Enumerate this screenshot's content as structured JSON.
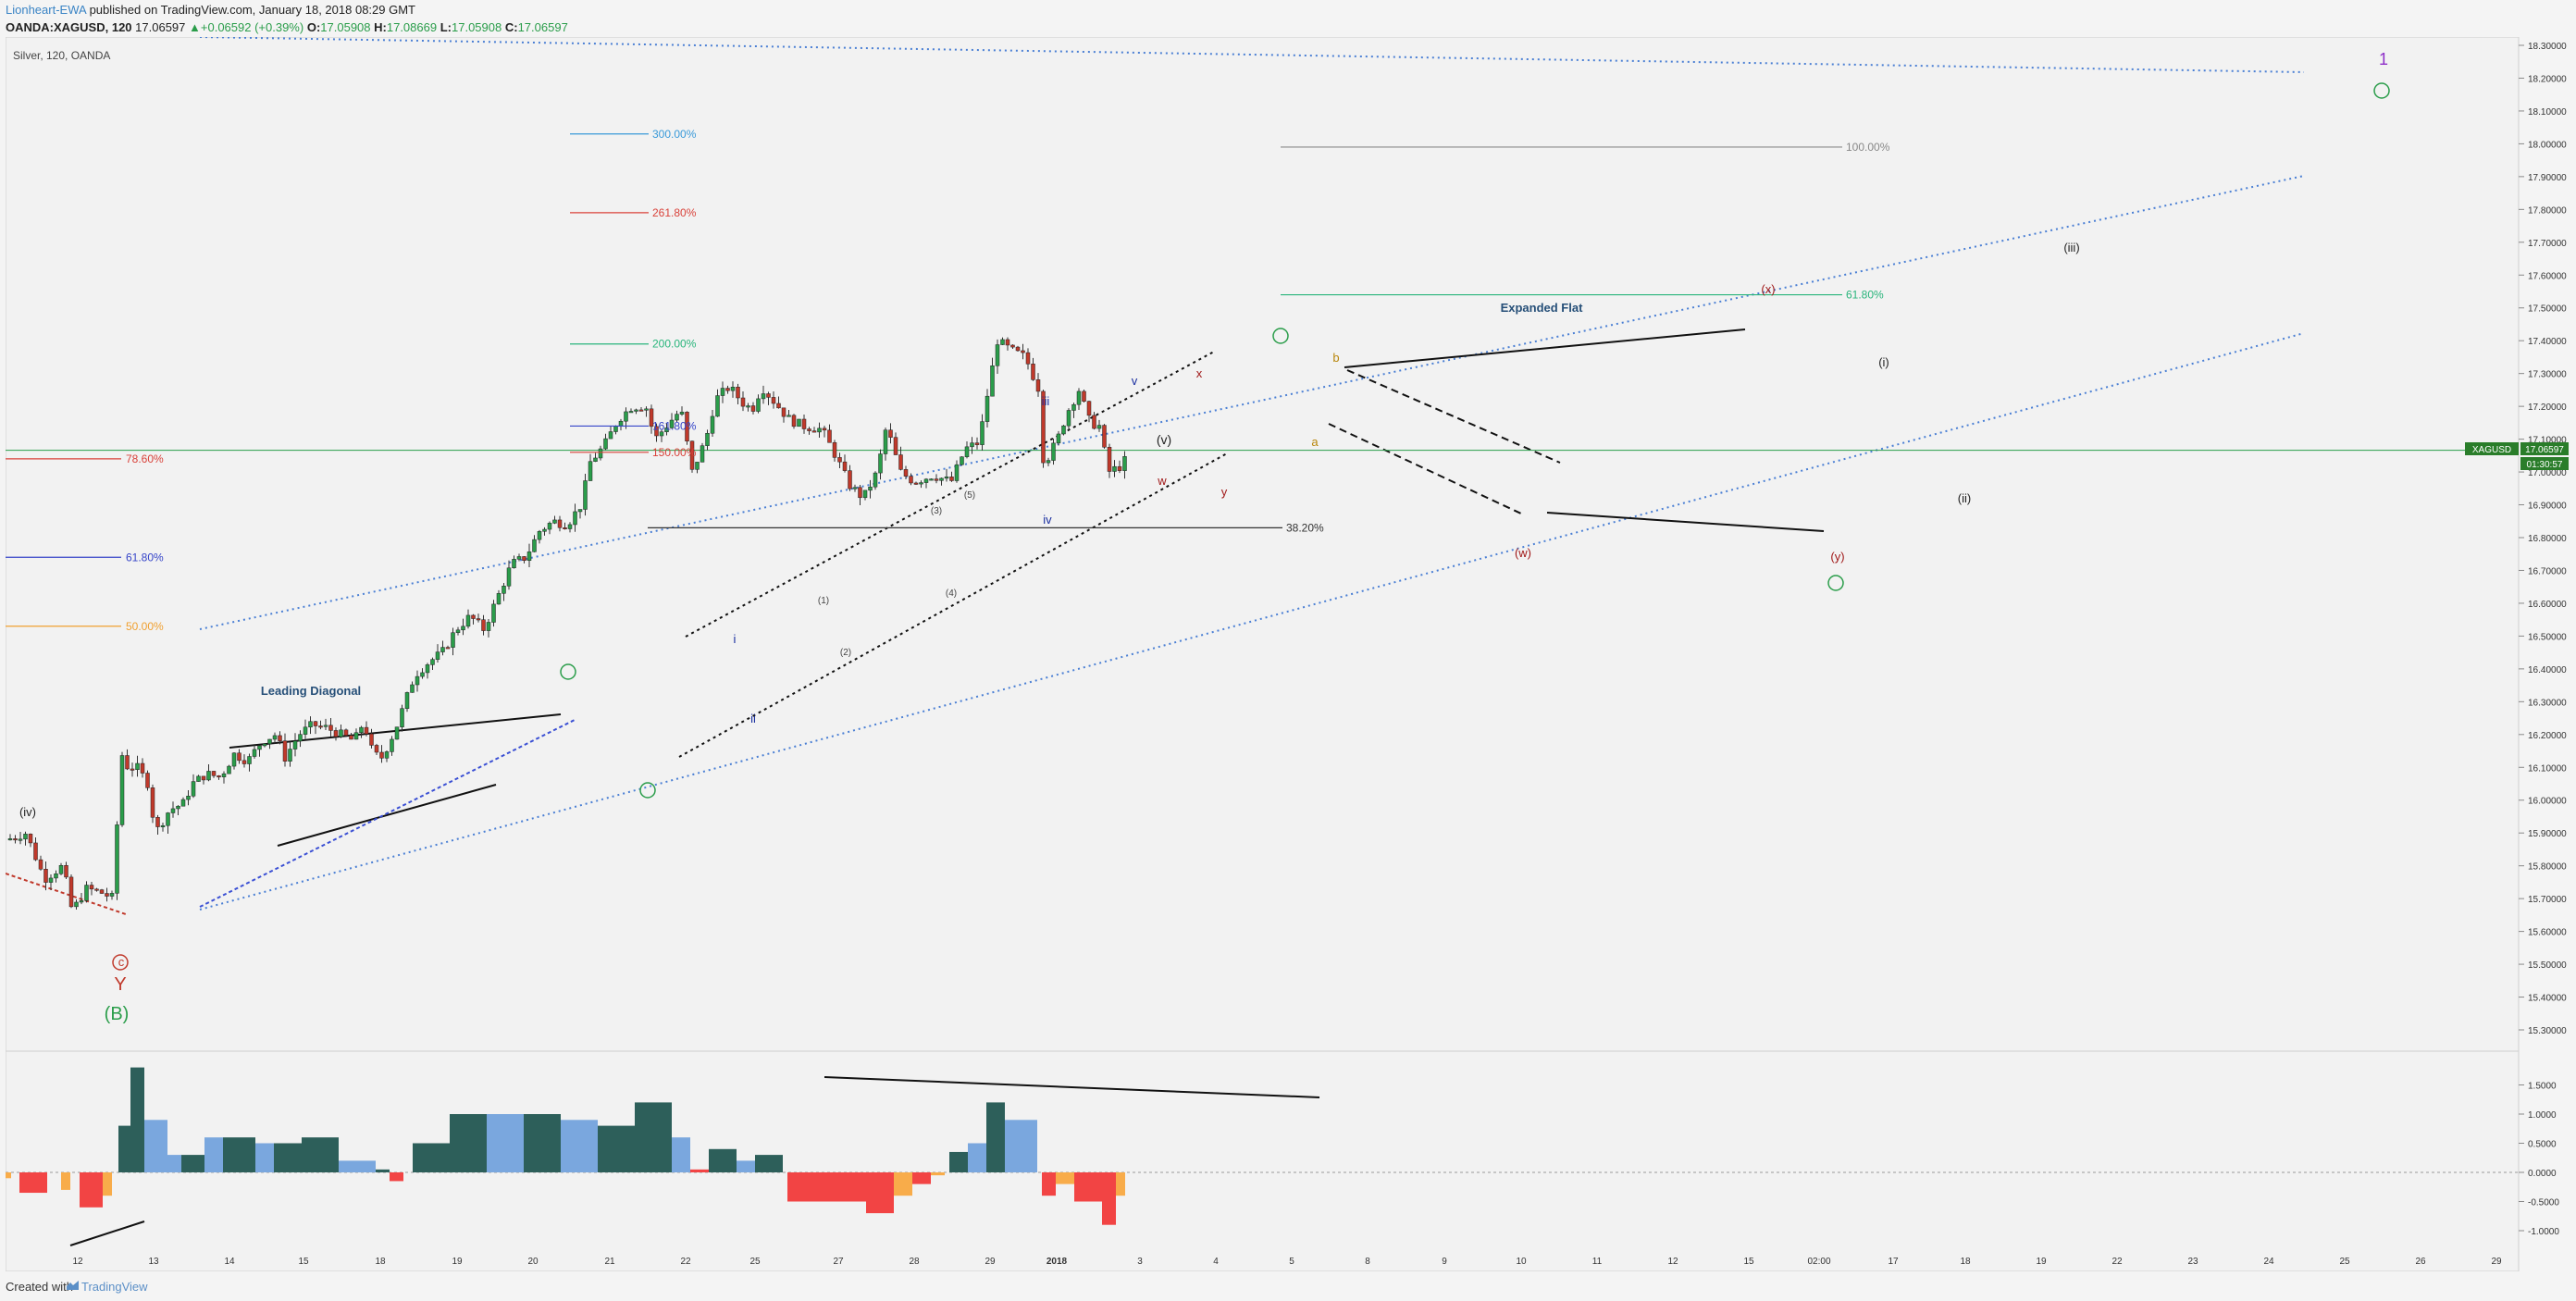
{
  "header": {
    "author": "Lionheart-EWA",
    "published": " published on TradingView.com, January 18, 2018 08:29 GMT",
    "symbol": "OANDA:XAGUSD, 120",
    "last": "17.06597",
    "change": "▲+0.06592 (+0.39%)",
    "o": "17.05908",
    "h": "17.08669",
    "l": "17.05908",
    "c": "17.06597"
  },
  "legend": "Silver, 120, OANDA",
  "footer": {
    "created": "Created with",
    "brand": "TradingView"
  },
  "price_tag": {
    "symbol": "XAGUSD",
    "price": "17.06597",
    "countdown": "01:30:57"
  },
  "colors": {
    "up": "#2a9d4a",
    "down": "#c0392b",
    "accent": "#3a84c5",
    "osc_dark": "#2d5f5a",
    "osc_blue": "#7aa7de",
    "osc_red": "#f24444",
    "osc_orange": "#f8ac4a"
  },
  "chart_data": {
    "type": "candlestick",
    "x_ticks": [
      "12",
      "13",
      "14",
      "15",
      "18",
      "19",
      "20",
      "21",
      "22",
      "25",
      "27",
      "28",
      "29",
      "2018",
      "3",
      "4",
      "5",
      "8",
      "9",
      "10",
      "11",
      "12",
      "15",
      "02:00",
      "17",
      "18",
      "19",
      "22",
      "23",
      "24",
      "25",
      "26",
      "29"
    ],
    "y_ticks": [
      "18.30000",
      "18.20000",
      "18.10000",
      "18.00000",
      "17.90000",
      "17.80000",
      "17.70000",
      "17.60000",
      "17.50000",
      "17.40000",
      "17.30000",
      "17.20000",
      "17.10000",
      "17.00000",
      "16.90000",
      "16.80000",
      "16.70000",
      "16.60000",
      "16.50000",
      "16.40000",
      "16.30000",
      "16.20000",
      "16.10000",
      "16.00000",
      "15.90000",
      "15.80000",
      "15.70000",
      "15.60000",
      "15.50000",
      "15.40000",
      "15.30000"
    ],
    "osc_ticks": [
      "1.5000",
      "1.0000",
      "0.5000",
      "0.0000",
      "-0.5000",
      "-1.0000"
    ],
    "price_path": [
      [
        0,
        15.88
      ],
      [
        20,
        15.9
      ],
      [
        40,
        15.76
      ],
      [
        60,
        15.8
      ],
      [
        70,
        15.66
      ],
      [
        85,
        15.73
      ],
      [
        100,
        15.72
      ],
      [
        115,
        15.7
      ],
      [
        122,
        16.15
      ],
      [
        130,
        16.1
      ],
      [
        140,
        16.1
      ],
      [
        152,
        16.05
      ],
      [
        160,
        15.9
      ],
      [
        175,
        15.97
      ],
      [
        190,
        15.99
      ],
      [
        200,
        16.05
      ],
      [
        215,
        16.08
      ],
      [
        230,
        16.07
      ],
      [
        245,
        16.14
      ],
      [
        260,
        16.12
      ],
      [
        275,
        16.18
      ],
      [
        290,
        16.2
      ],
      [
        300,
        16.13
      ],
      [
        315,
        16.2
      ],
      [
        330,
        16.23
      ],
      [
        345,
        16.22
      ],
      [
        360,
        16.2
      ],
      [
        375,
        16.18
      ],
      [
        385,
        16.24
      ],
      [
        395,
        16.14
      ],
      [
        405,
        16.13
      ],
      [
        420,
        16.22
      ],
      [
        440,
        16.38
      ],
      [
        455,
        16.42
      ],
      [
        470,
        16.45
      ],
      [
        485,
        16.52
      ],
      [
        500,
        16.56
      ],
      [
        515,
        16.52
      ],
      [
        530,
        16.62
      ],
      [
        545,
        16.72
      ],
      [
        560,
        16.74
      ],
      [
        575,
        16.82
      ],
      [
        590,
        16.85
      ],
      [
        605,
        16.84
      ],
      [
        620,
        16.9
      ],
      [
        630,
        17.03
      ],
      [
        645,
        17.08
      ],
      [
        660,
        17.16
      ],
      [
        675,
        17.2
      ],
      [
        690,
        17.2
      ],
      [
        700,
        17.1
      ],
      [
        715,
        17.15
      ],
      [
        728,
        17.19
      ],
      [
        740,
        17.0
      ],
      [
        755,
        17.1
      ],
      [
        765,
        17.22
      ],
      [
        780,
        17.26
      ],
      [
        795,
        17.21
      ],
      [
        805,
        17.19
      ],
      [
        815,
        17.26
      ],
      [
        830,
        17.21
      ],
      [
        845,
        17.16
      ],
      [
        860,
        17.14
      ],
      [
        880,
        17.13
      ],
      [
        895,
        17.05
      ],
      [
        910,
        16.96
      ],
      [
        925,
        16.92
      ],
      [
        940,
        17.0
      ],
      [
        950,
        17.14
      ],
      [
        965,
        17.0
      ],
      [
        980,
        16.97
      ],
      [
        1000,
        16.99
      ],
      [
        1020,
        16.97
      ],
      [
        1035,
        17.07
      ],
      [
        1050,
        17.09
      ],
      [
        1060,
        17.25
      ],
      [
        1070,
        17.4
      ],
      [
        1085,
        17.37
      ],
      [
        1100,
        17.35
      ],
      [
        1115,
        17.25
      ],
      [
        1120,
        17.02
      ],
      [
        1135,
        17.1
      ],
      [
        1145,
        17.18
      ],
      [
        1158,
        17.25
      ],
      [
        1170,
        17.15
      ],
      [
        1180,
        17.14
      ],
      [
        1190,
        17.0
      ],
      [
        1205,
        17.02
      ],
      [
        1212,
        17.06
      ]
    ],
    "fib_left": [
      {
        "label": "78.60%",
        "value": 17.04
      },
      {
        "label": "61.80%",
        "value": 16.74
      },
      {
        "label": "50.00%",
        "value": 16.53
      }
    ],
    "fib_ext": [
      {
        "label": "300.00%",
        "value": 18.03
      },
      {
        "label": "261.80%",
        "value": 17.79
      },
      {
        "label": "200.00%",
        "value": 17.39
      },
      {
        "label": "161.80%",
        "value": 17.14
      },
      {
        "label": "150.00%",
        "value": 17.06
      },
      {
        "label": "100.00%",
        "value": 17.99
      },
      {
        "label": "61.80%",
        "value": 17.54
      },
      {
        "label": "38.20%",
        "value": 16.83
      }
    ],
    "annotations": [
      "Leading Diagonal",
      "Expanded Flat",
      "(B)",
      "Y",
      "c",
      "(v)",
      "(iv)",
      "(i)",
      "(ii)",
      "(iii)",
      "i",
      "ii",
      "iii",
      "iv",
      "v",
      "(x)",
      "(w)",
      "(y)",
      "w",
      "x",
      "y",
      "a",
      "b",
      "1",
      "(1)",
      "(2)",
      "(3)",
      "(4)",
      "(5)"
    ]
  }
}
